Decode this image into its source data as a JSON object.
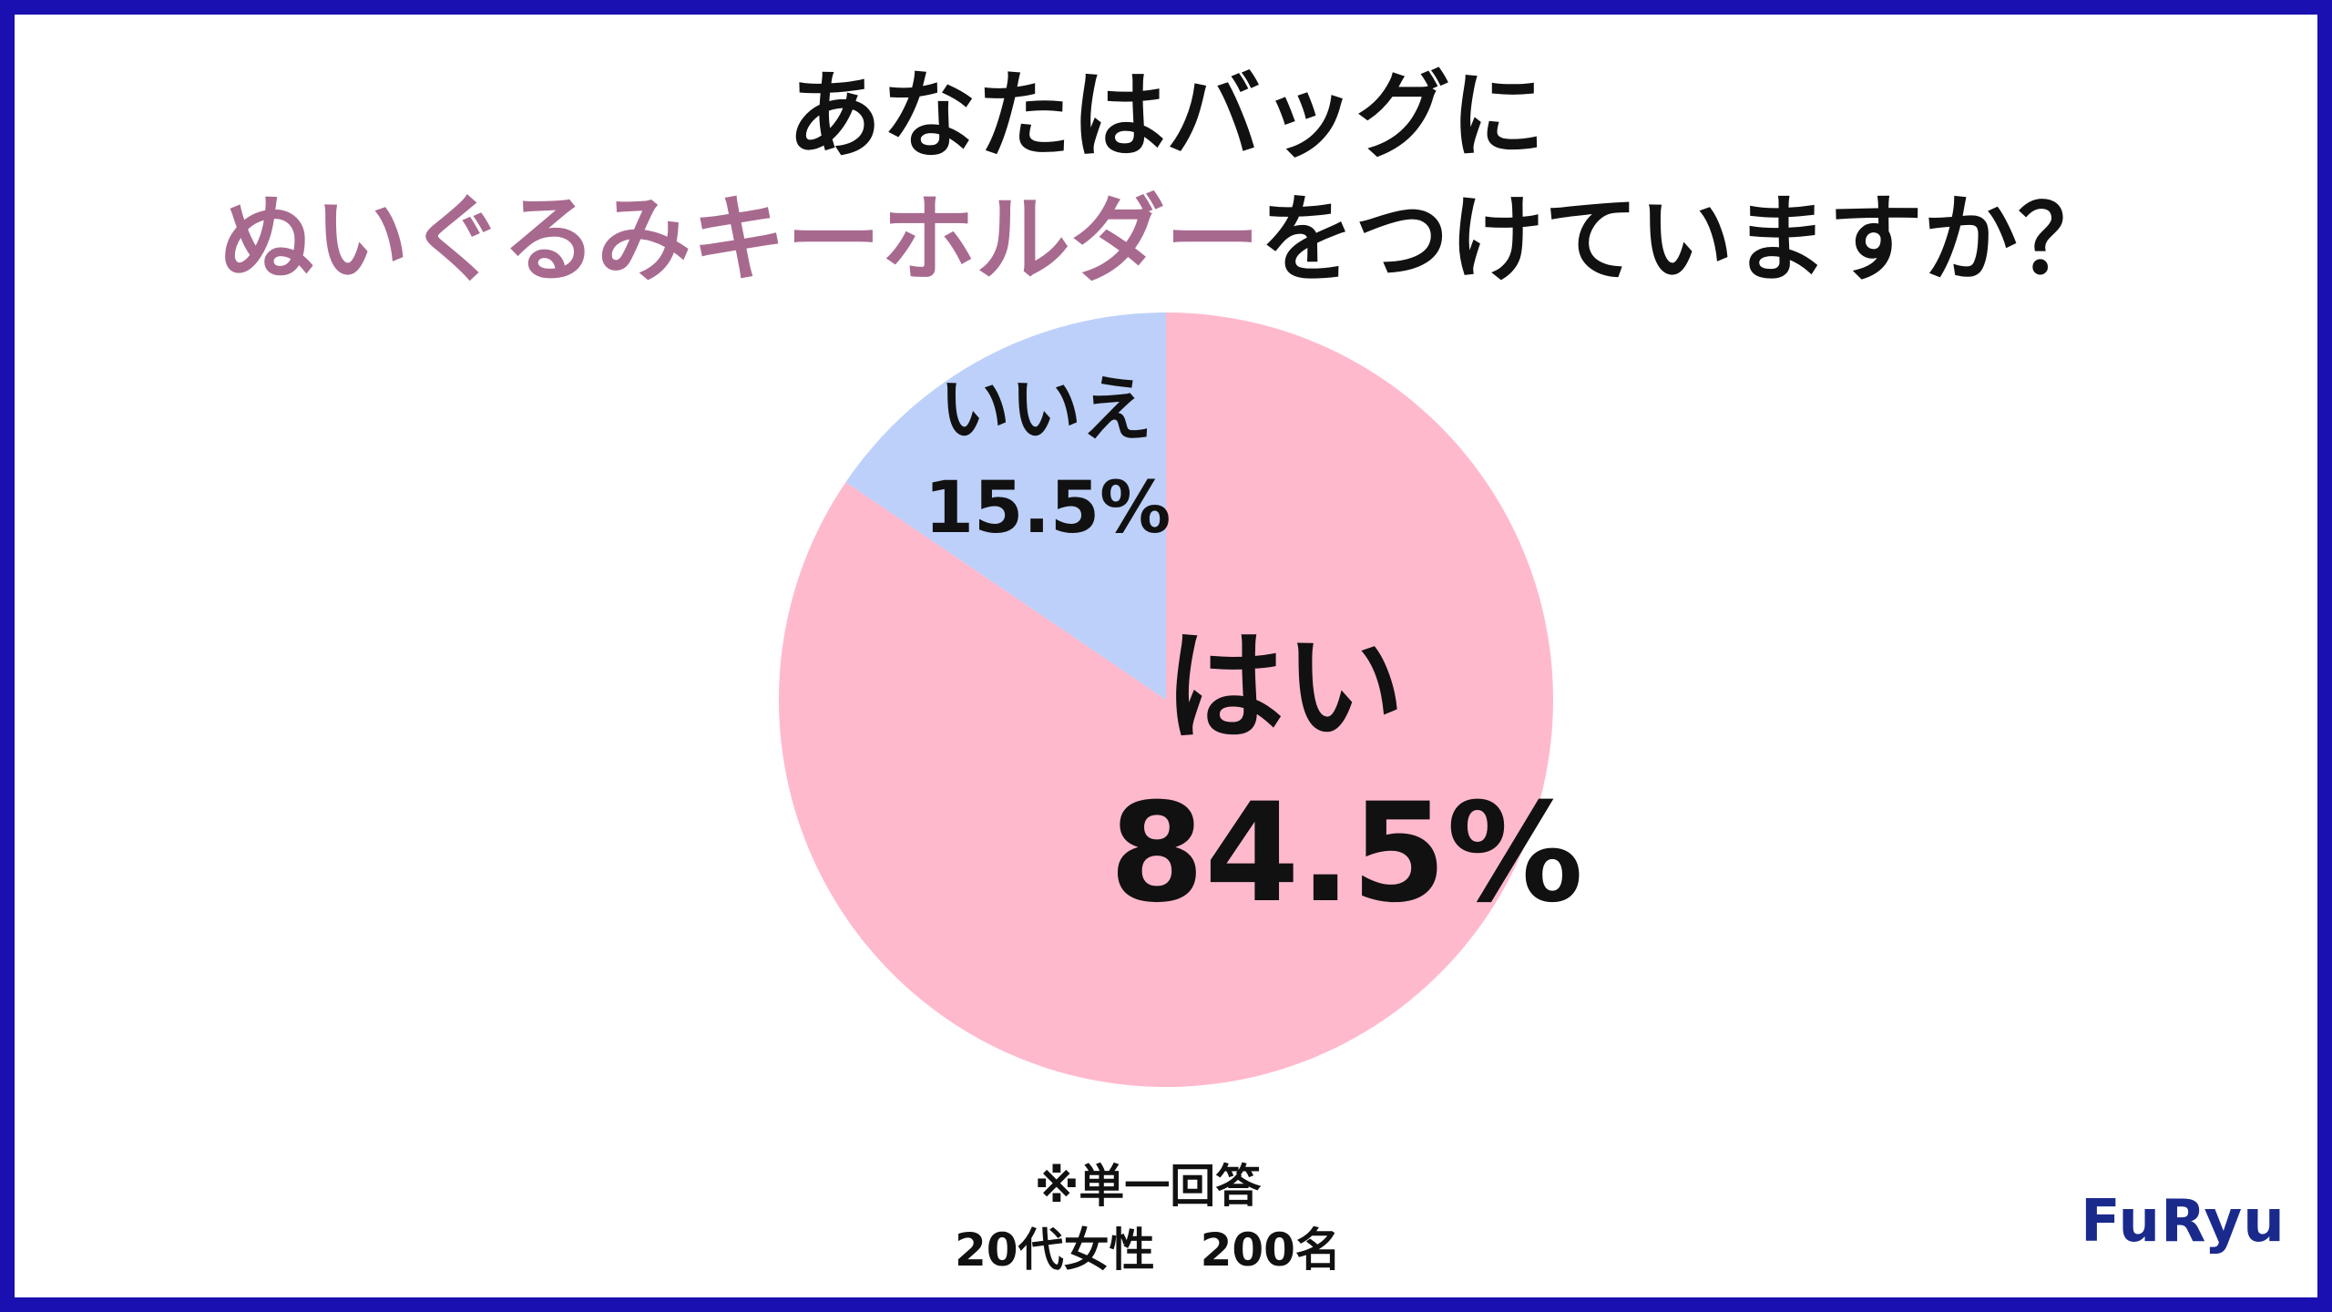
{
  "title": {
    "line1": "あなたはバッグに",
    "line2_accent": "ぬいぐるみキーホルダー",
    "line2_rest": "をつけていますか？"
  },
  "chart_data": {
    "type": "pie",
    "start": "top",
    "direction": "clockwise",
    "slices": [
      {
        "label": "はい",
        "value": 84.5,
        "value_label": "84.5%",
        "color": "#ffb9cd"
      },
      {
        "label": "いいえ",
        "value": 15.5,
        "value_label": "15.5%",
        "color": "#bcd0fa"
      }
    ]
  },
  "notes": {
    "line1": "※単一回答",
    "line2": "20代女性　200名"
  },
  "logo": {
    "text": "FuRyu"
  },
  "colors": {
    "border": "#1a0fb0",
    "accent": "#a8698f",
    "logo": "#1a2a8c"
  }
}
